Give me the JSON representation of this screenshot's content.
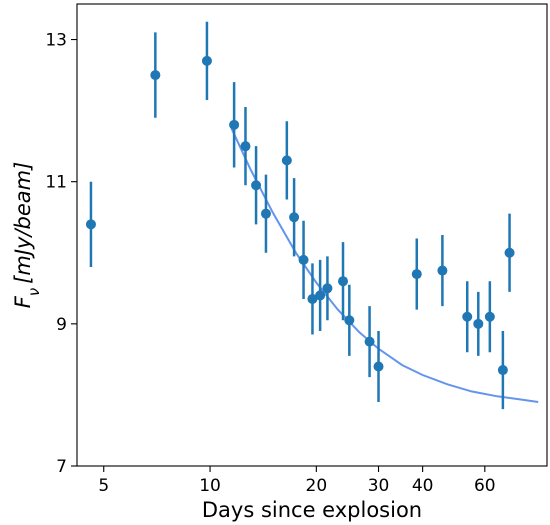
{
  "chart_data": {
    "type": "scatter",
    "xlabel": "Days since explosion",
    "ylabel_main": "F",
    "ylabel_sub": "ν",
    "ylabel_units": "[mJy/beam]",
    "x_scale": "log",
    "xlim": [
      4.2,
      90
    ],
    "ylim": [
      7,
      13.5
    ],
    "x_ticks": [
      {
        "value": 5,
        "label": "5"
      },
      {
        "value": 10,
        "label": "10"
      },
      {
        "value": 20,
        "label": "20"
      },
      {
        "value": 30,
        "label": "30"
      },
      {
        "value": 40,
        "label": "40"
      },
      {
        "value": 60,
        "label": "60"
      }
    ],
    "y_ticks": [
      {
        "value": 7,
        "label": "7"
      },
      {
        "value": 9,
        "label": "9"
      },
      {
        "value": 11,
        "label": "11"
      },
      {
        "value": 13,
        "label": "13"
      }
    ],
    "grid": false,
    "marker_color": "#1f77b4",
    "fit_color": "#6495ed",
    "series": [
      {
        "points": [
          {
            "x": 4.6,
            "y": 10.4,
            "err": 0.6
          },
          {
            "x": 7.0,
            "y": 12.5,
            "err": 0.6
          },
          {
            "x": 9.8,
            "y": 12.7,
            "err": 0.55
          },
          {
            "x": 11.7,
            "y": 11.8,
            "err": 0.6
          },
          {
            "x": 12.6,
            "y": 11.5,
            "err": 0.55
          },
          {
            "x": 13.5,
            "y": 10.95,
            "err": 0.55
          },
          {
            "x": 14.4,
            "y": 10.55,
            "err": 0.55
          },
          {
            "x": 16.5,
            "y": 11.3,
            "err": 0.55
          },
          {
            "x": 17.3,
            "y": 10.5,
            "err": 0.55
          },
          {
            "x": 18.4,
            "y": 9.9,
            "err": 0.55
          },
          {
            "x": 19.5,
            "y": 9.35,
            "err": 0.5
          },
          {
            "x": 20.5,
            "y": 9.4,
            "err": 0.5
          },
          {
            "x": 21.5,
            "y": 9.5,
            "err": 0.45
          },
          {
            "x": 23.8,
            "y": 9.6,
            "err": 0.55
          },
          {
            "x": 24.8,
            "y": 9.05,
            "err": 0.5
          },
          {
            "x": 28.3,
            "y": 8.75,
            "err": 0.5
          },
          {
            "x": 30.0,
            "y": 8.4,
            "err": 0.5
          },
          {
            "x": 38.5,
            "y": 9.7,
            "err": 0.5
          },
          {
            "x": 45.5,
            "y": 9.75,
            "err": 0.5
          },
          {
            "x": 53.5,
            "y": 9.1,
            "err": 0.5
          },
          {
            "x": 57.5,
            "y": 9.0,
            "err": 0.45
          },
          {
            "x": 62.0,
            "y": 9.1,
            "err": 0.5
          },
          {
            "x": 67.5,
            "y": 8.35,
            "err": 0.55
          },
          {
            "x": 70.5,
            "y": 10.0,
            "err": 0.55
          }
        ]
      }
    ],
    "fit_curve": [
      {
        "x": 11.5,
        "y": 11.75
      },
      {
        "x": 13,
        "y": 11.18
      },
      {
        "x": 15,
        "y": 10.58
      },
      {
        "x": 17.5,
        "y": 10.0
      },
      {
        "x": 20,
        "y": 9.58
      },
      {
        "x": 23,
        "y": 9.2
      },
      {
        "x": 26.5,
        "y": 8.88
      },
      {
        "x": 30,
        "y": 8.65
      },
      {
        "x": 35,
        "y": 8.42
      },
      {
        "x": 40,
        "y": 8.28
      },
      {
        "x": 47,
        "y": 8.15
      },
      {
        "x": 55,
        "y": 8.05
      },
      {
        "x": 65,
        "y": 7.98
      },
      {
        "x": 75,
        "y": 7.94
      },
      {
        "x": 85,
        "y": 7.9
      }
    ]
  }
}
